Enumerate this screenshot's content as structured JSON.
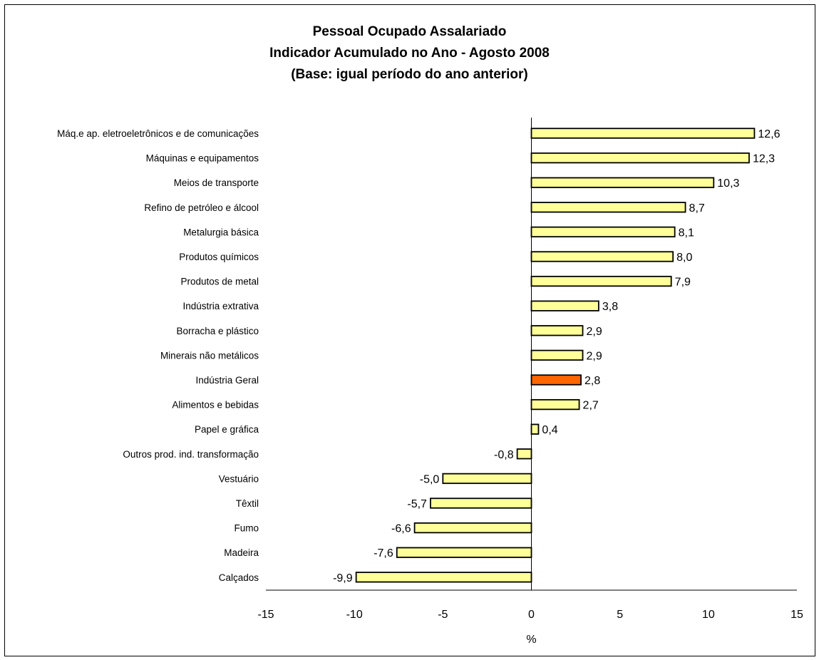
{
  "title_lines": [
    "Pessoal Ocupado Assalariado",
    "Indicador Acumulado no Ano - Agosto 2008",
    "(Base: igual período do ano anterior)"
  ],
  "colors": {
    "bar_default": "#ffff99",
    "bar_highlight": "#ff6600",
    "bar_stroke": "#000000"
  },
  "chart_data": {
    "type": "bar",
    "orientation": "horizontal",
    "title": "Pessoal Ocupado Assalariado / Indicador Acumulado no Ano - Agosto 2008 / (Base: igual período do ano anterior)",
    "xlabel": "%",
    "ylabel": "",
    "xlim": [
      -15,
      15
    ],
    "xticks": [
      -15,
      -10,
      -5,
      0,
      5,
      10,
      15
    ],
    "xtick_labels": [
      "-15",
      "-10",
      "-5",
      "0",
      "5",
      "10",
      "15"
    ],
    "grid": false,
    "legend": "none",
    "highlight_category": "Indústria Geral",
    "categories": [
      "Máq.e ap. eletroeletrônicos e de comunicações",
      "Máquinas e equipamentos",
      "Meios de transporte",
      "Refino de petróleo e álcool",
      "Metalurgia básica",
      "Produtos químicos",
      "Produtos de metal",
      "Indústria extrativa",
      "Borracha e plástico",
      "Minerais não metálicos",
      "Indústria Geral",
      "Alimentos e bebidas",
      "Papel e gráfica",
      "Outros prod. ind. transformação",
      "Vestuário",
      "Têxtil",
      "Fumo",
      "Madeira",
      "Calçados"
    ],
    "values": [
      12.6,
      12.3,
      10.3,
      8.7,
      8.1,
      8.0,
      7.9,
      3.8,
      2.9,
      2.9,
      2.8,
      2.7,
      0.4,
      -0.8,
      -5.0,
      -5.7,
      -6.6,
      -7.6,
      -9.9
    ],
    "value_labels": [
      "12,6",
      "12,3",
      "10,3",
      "8,7",
      "8,1",
      "8,0",
      "7,9",
      "3,8",
      "2,9",
      "2,9",
      "2,8",
      "2,7",
      "0,4",
      "-0,8",
      "-5,0",
      "-5,7",
      "-6,6",
      "-7,6",
      "-9,9"
    ]
  }
}
